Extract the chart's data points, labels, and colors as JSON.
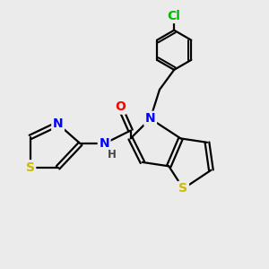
{
  "background_color": "#ebebeb",
  "atom_colors": {
    "C": "#000000",
    "N": "#0000ff",
    "O": "#ff0000",
    "S": "#ccbb00",
    "Cl": "#00bb00",
    "H": "#444444"
  },
  "bond_color": "#000000",
  "bond_width": 1.6,
  "font_size_atom": 10,
  "font_size_small": 8.5
}
